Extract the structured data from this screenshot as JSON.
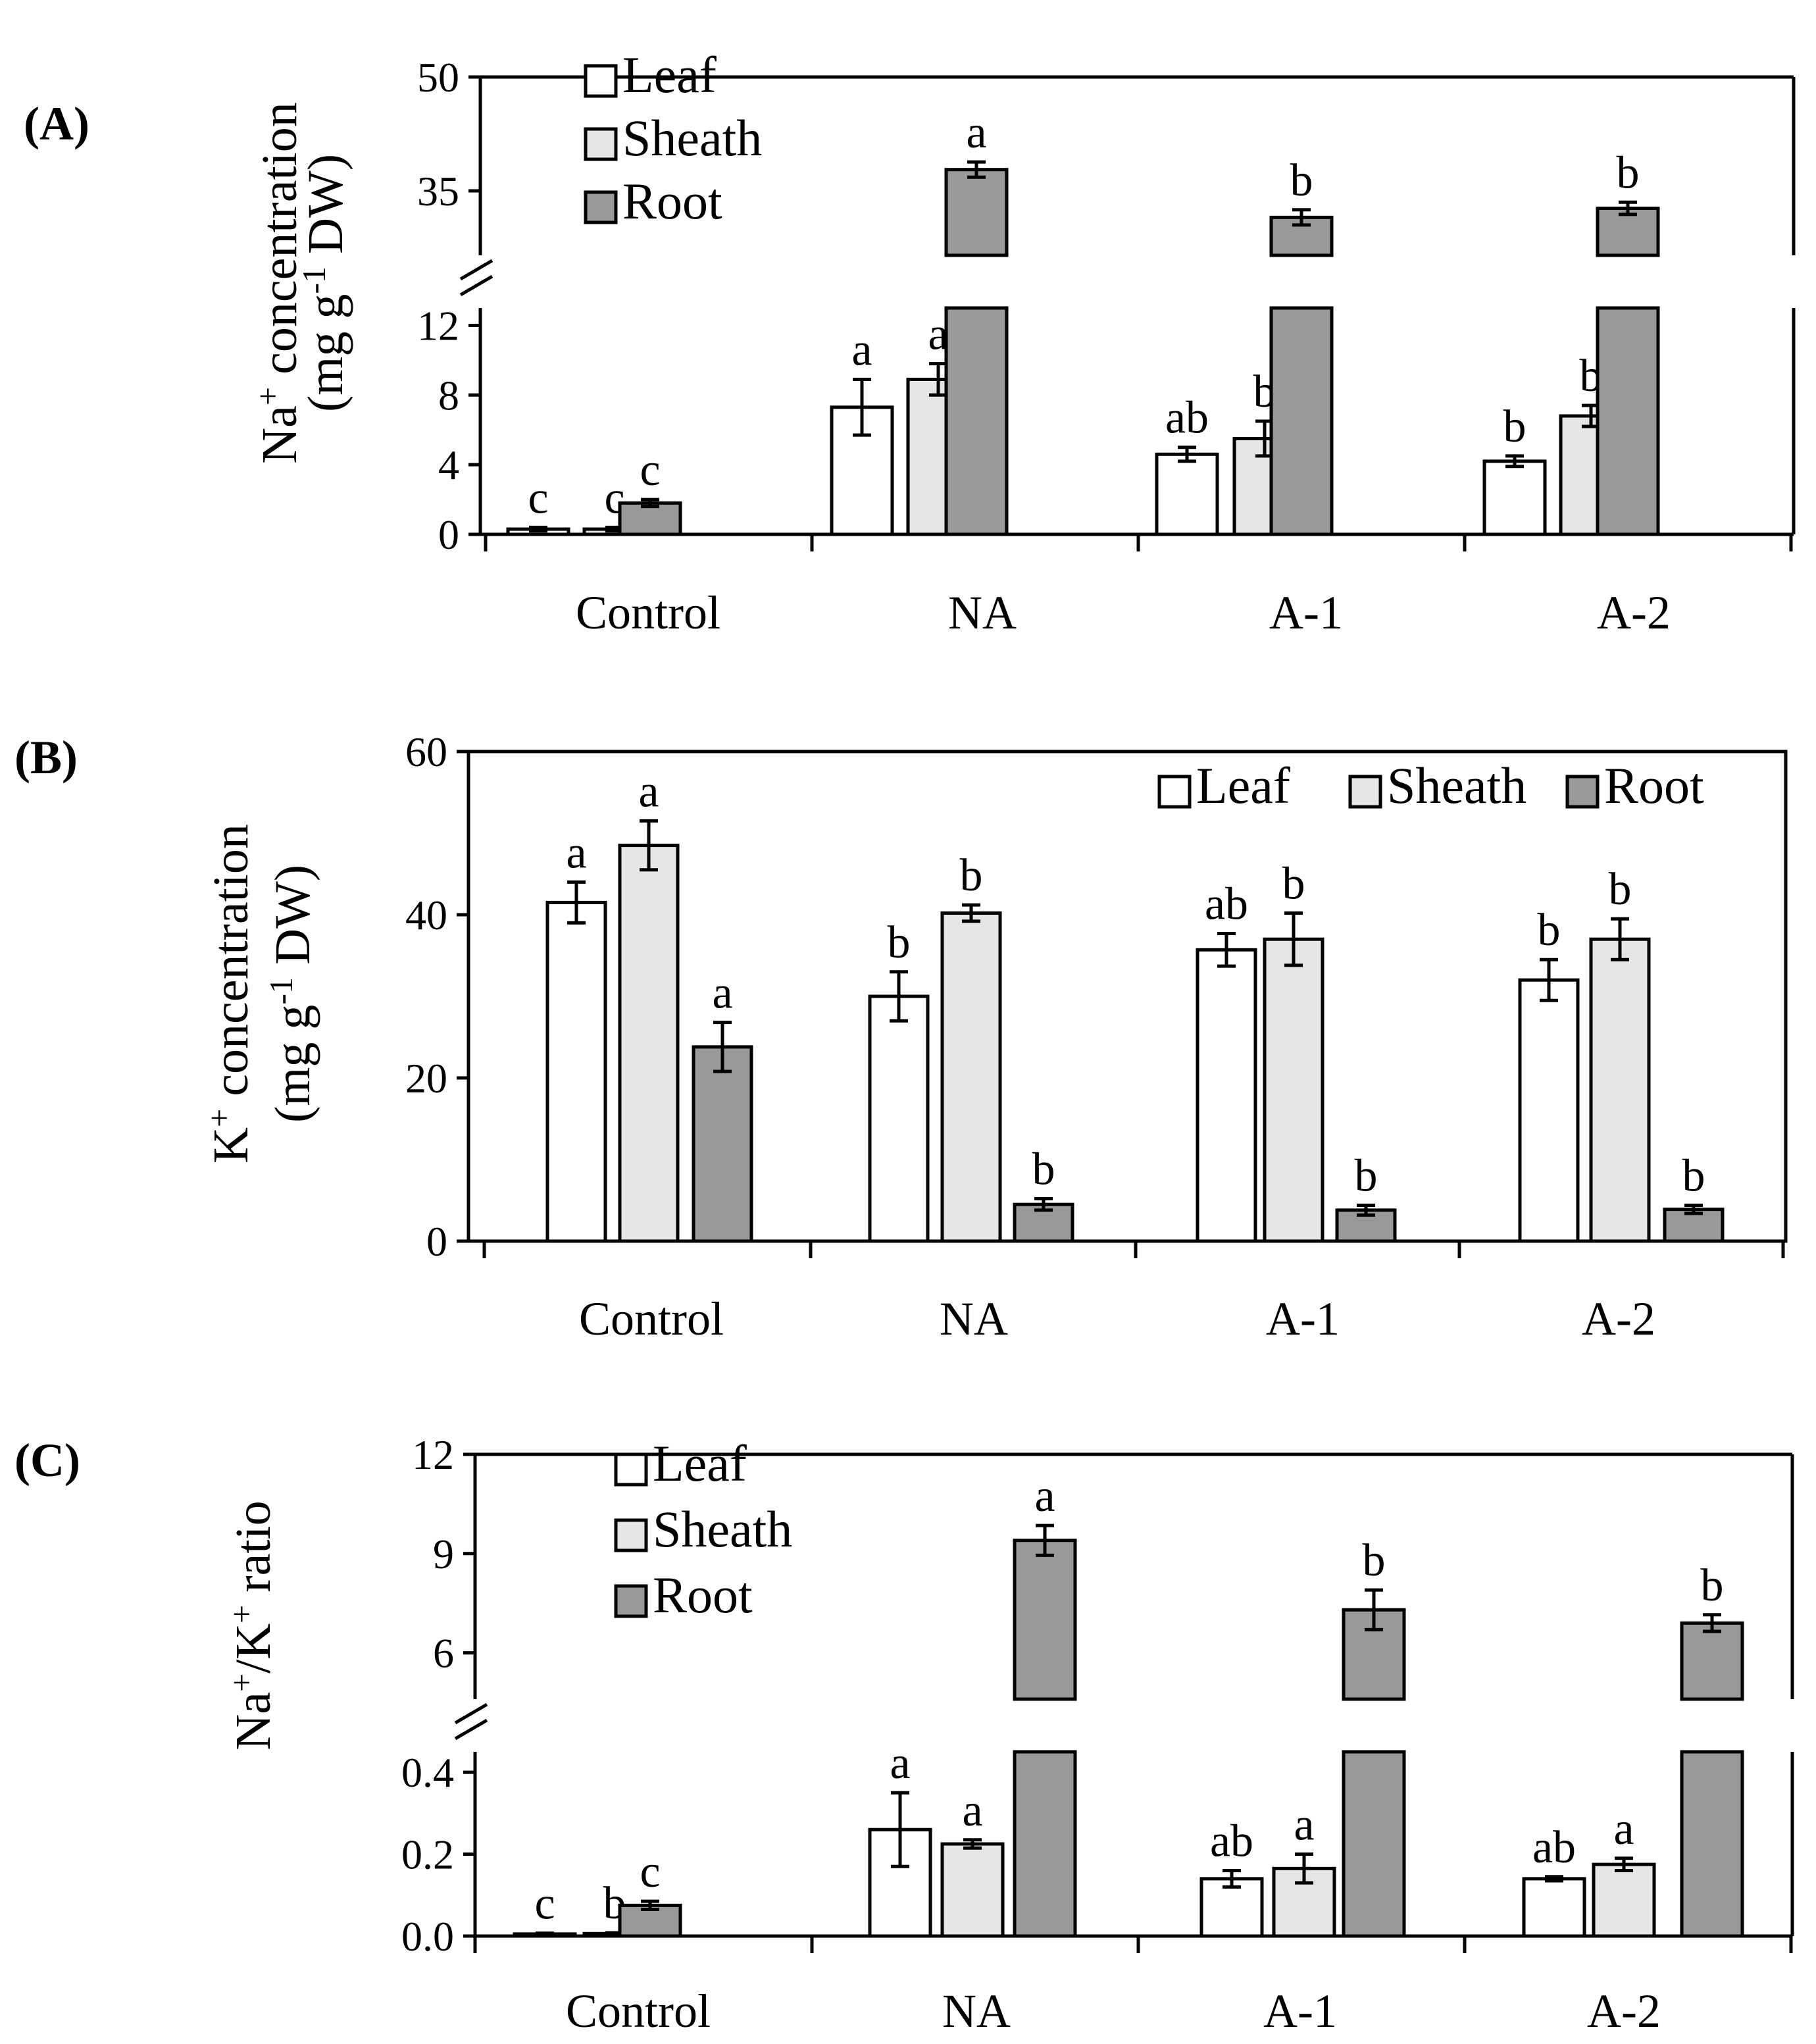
{
  "figure": {
    "panels": [
      "(A)",
      "(B)",
      "(C)"
    ],
    "legend": [
      "Leaf",
      "Sheath",
      "Root"
    ]
  },
  "colors": {
    "leaf": "#ffffff",
    "sheath": "#e6e6e6",
    "root": "#999999",
    "outline": "#000000"
  },
  "chart_data": [
    {
      "panel": "(A)",
      "type": "bar",
      "broken_axis": true,
      "ylabel": "Na+ concentration (mg g-1 DW)",
      "ylabel_parts": {
        "main": "Na",
        "sup1": "+",
        "rest1": " concentration",
        "line2": "(mg g",
        "sup2": "-1",
        "rest2": " DW)"
      },
      "categories": [
        "Control",
        "NA",
        "A-1",
        "A-2"
      ],
      "lower_ylim": [
        0,
        13
      ],
      "lower_ticks": [
        "0",
        "4",
        "8",
        "12"
      ],
      "upper_ylim": [
        26.5,
        50
      ],
      "upper_ticks": [
        "35",
        "50"
      ],
      "legend_position": "top-left",
      "series": [
        {
          "name": "Leaf",
          "values": [
            0.3,
            7.3,
            4.6,
            4.2
          ],
          "errors": [
            0.1,
            1.6,
            0.4,
            0.3
          ],
          "labels": [
            "c",
            "a",
            "ab",
            "b"
          ]
        },
        {
          "name": "Sheath",
          "values": [
            0.3,
            8.9,
            5.5,
            6.8
          ],
          "errors": [
            0.1,
            0.9,
            1.0,
            0.6
          ],
          "labels": [
            "c",
            "a",
            "b",
            "b"
          ]
        },
        {
          "name": "Root",
          "values": [
            1.8,
            37.8,
            31.5,
            32.7
          ],
          "errors": [
            0.2,
            1.0,
            1.0,
            0.8
          ],
          "labels": [
            "c",
            "a",
            "b",
            "b"
          ]
        }
      ]
    },
    {
      "panel": "(B)",
      "type": "bar",
      "broken_axis": false,
      "ylabel": "K+ concentration (mg g-1 DW)",
      "ylabel_parts": {
        "main": "K",
        "sup1": "+",
        "rest1": " concentration",
        "line2": "(mg g",
        "sup2": "-1",
        "rest2": " DW)"
      },
      "categories": [
        "Control",
        "NA",
        "A-1",
        "A-2"
      ],
      "ylim": [
        0,
        60
      ],
      "ticks": [
        "0",
        "20",
        "40",
        "60"
      ],
      "legend_position": "top-right",
      "series": [
        {
          "name": "Leaf",
          "values": [
            41.5,
            30,
            35.7,
            32
          ],
          "errors": [
            2.5,
            3.0,
            2.0,
            2.5
          ],
          "labels": [
            "a",
            "b",
            "ab",
            "b"
          ]
        },
        {
          "name": "Sheath",
          "values": [
            48.5,
            40.2,
            37,
            37
          ],
          "errors": [
            3.0,
            1.0,
            3.2,
            2.5
          ],
          "labels": [
            "a",
            "b",
            "b",
            "b"
          ]
        },
        {
          "name": "Root",
          "values": [
            23.8,
            4.5,
            3.8,
            3.9
          ],
          "errors": [
            3.0,
            0.7,
            0.6,
            0.5
          ],
          "labels": [
            "a",
            "b",
            "b",
            "b"
          ]
        }
      ]
    },
    {
      "panel": "(C)",
      "type": "bar",
      "broken_axis": true,
      "ylabel": "Na+/K+ ratio",
      "ylabel_parts": {
        "main": "Na",
        "sup1": "+",
        "mid": "/K",
        "sup2": "+",
        "rest": " ratio"
      },
      "categories": [
        "Control",
        "NA",
        "A-1",
        "A-2"
      ],
      "lower_ylim": [
        0,
        0.45
      ],
      "lower_ticks": [
        "0.0",
        "0.2",
        "0.4"
      ],
      "upper_ylim": [
        4.6,
        12
      ],
      "upper_ticks": [
        "6",
        "9",
        "12"
      ],
      "legend_position": "top-left",
      "series": [
        {
          "name": "Leaf",
          "values": [
            0.005,
            0.26,
            0.14,
            0.14
          ],
          "errors": [
            0.002,
            0.09,
            0.02,
            0.005
          ],
          "labels": [
            "c",
            "a",
            "ab",
            "ab"
          ]
        },
        {
          "name": "Sheath",
          "values": [
            0.006,
            0.225,
            0.165,
            0.175
          ],
          "errors": [
            0.002,
            0.01,
            0.035,
            0.015
          ],
          "labels": [
            "b",
            "a",
            "a",
            "a"
          ]
        },
        {
          "name": "Root",
          "values": [
            0.075,
            9.4,
            7.3,
            6.9
          ],
          "errors": [
            0.01,
            0.45,
            0.6,
            0.25
          ],
          "labels": [
            "c",
            "a",
            "b",
            "b"
          ]
        }
      ]
    }
  ]
}
